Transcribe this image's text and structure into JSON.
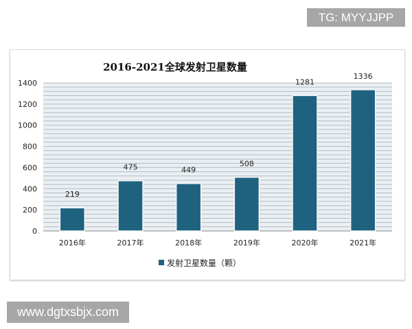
{
  "watermarks": {
    "top": "TG: MYYJJPP",
    "bottom": "www.dgtxsbjx.com"
  },
  "chart_data": {
    "type": "bar",
    "title": "2016-2021全球发射卫星数量",
    "categories": [
      "2016年",
      "2017年",
      "2018年",
      "2019年",
      "2020年",
      "2021年"
    ],
    "series": [
      {
        "name": "发射卫星数量（颗）",
        "values": [
          219,
          475,
          449,
          508,
          1281,
          1336
        ],
        "color": "#1f6280"
      }
    ],
    "ylim": [
      0,
      1400
    ],
    "yticks": [
      0,
      200,
      400,
      600,
      800,
      1000,
      1200,
      1400
    ],
    "grid": true,
    "legend": "bottom",
    "data_labels": true
  }
}
